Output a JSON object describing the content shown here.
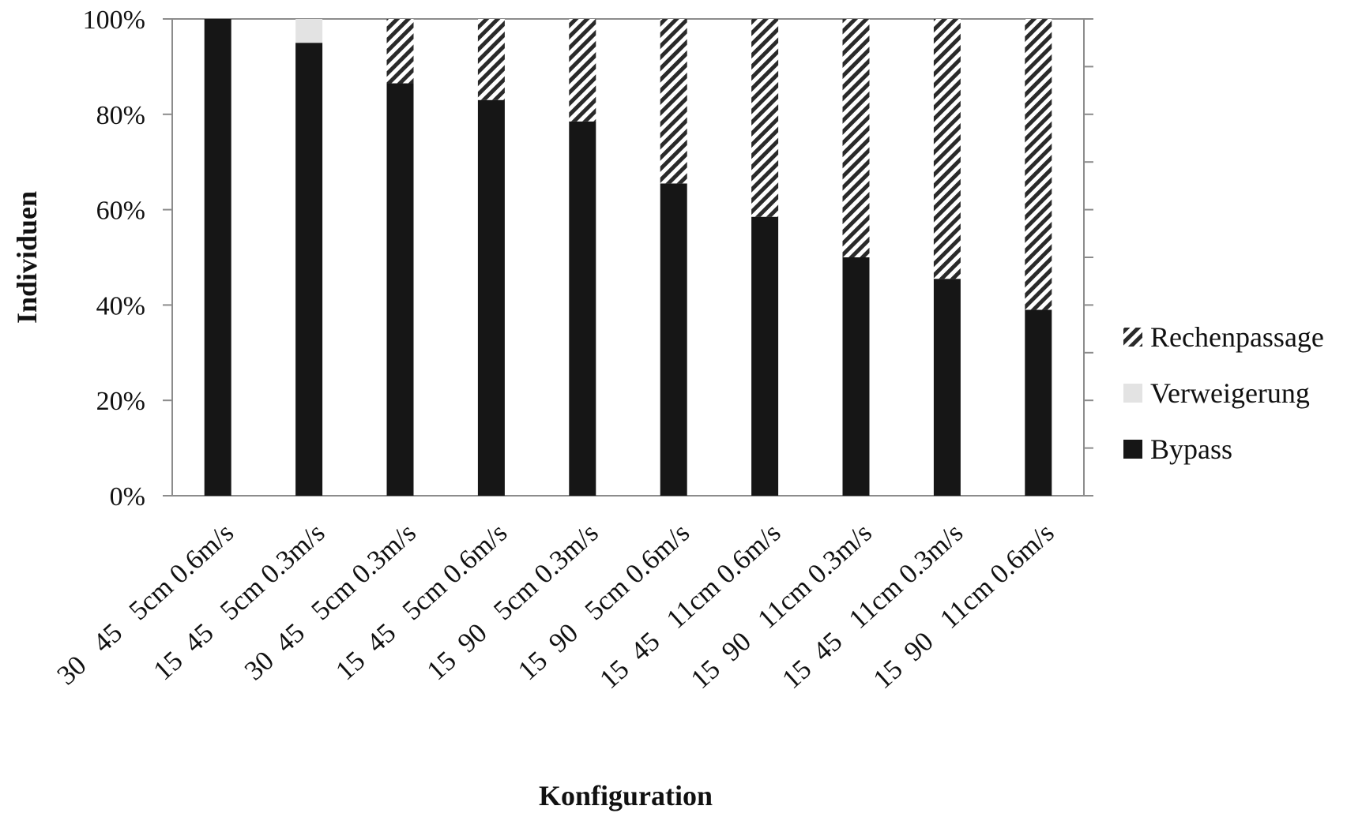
{
  "chart_data": {
    "type": "bar",
    "stacked": true,
    "percent_stacked": true,
    "title": "",
    "xlabel": "Konfiguration",
    "ylabel": "Individuen",
    "ylim": [
      0,
      100
    ],
    "yticks": [
      "0%",
      "20%",
      "40%",
      "60%",
      "80%",
      "100%"
    ],
    "categories": [
      "30   45   5cm 0.6m/s",
      "15  45   5cm 0.3m/s",
      "30  45   5cm 0.3m/s",
      "15  45   5cm 0.6m/s",
      "15  90   5cm 0.3m/s",
      "15  90   5cm 0.6m/s",
      "15  45   11cm 0.6m/s",
      "15  90   11cm 0.3m/s",
      "15  45   11cm 0.3m/s",
      "15  90   11cm 0.6m/s"
    ],
    "series": [
      {
        "name": "Bypass",
        "values": [
          100,
          95,
          86.5,
          83,
          78.5,
          65.5,
          58.5,
          50,
          45.5,
          39
        ],
        "color": "#161616"
      },
      {
        "name": "Verweigerung",
        "values": [
          0,
          5,
          0,
          0,
          0,
          0,
          0,
          0,
          0,
          0
        ],
        "color": "#e3e3e3"
      },
      {
        "name": "Rechenpassage",
        "values": [
          0,
          0,
          13.5,
          17,
          21.5,
          34.5,
          41.5,
          50,
          54.5,
          61
        ],
        "color": "hatched"
      }
    ],
    "legend_order": [
      "Rechenpassage",
      "Verweigerung",
      "Bypass"
    ],
    "legend_position": "right",
    "grid": false
  }
}
